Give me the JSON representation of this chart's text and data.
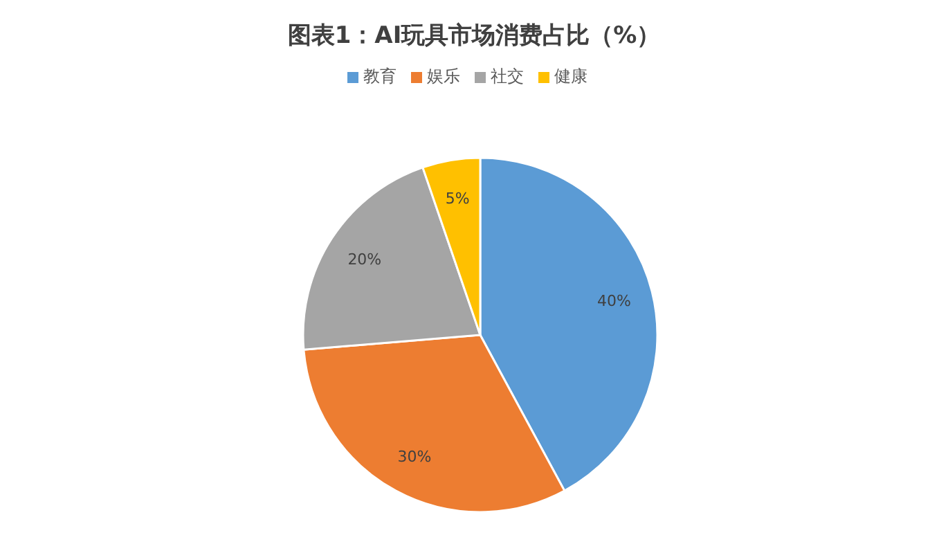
{
  "chart_data": {
    "type": "pie",
    "title": "图表1：AI玩具市场消费占比（%）",
    "categories": [
      "教育",
      "娱乐",
      "社交",
      "健康"
    ],
    "values": [
      40,
      30,
      20,
      5
    ],
    "colors": [
      "#5b9bd5",
      "#ed7d31",
      "#a5a5a5",
      "#ffc000"
    ],
    "value_labels": [
      "40%",
      "30%",
      "20%",
      "5%"
    ],
    "legend": "top"
  }
}
